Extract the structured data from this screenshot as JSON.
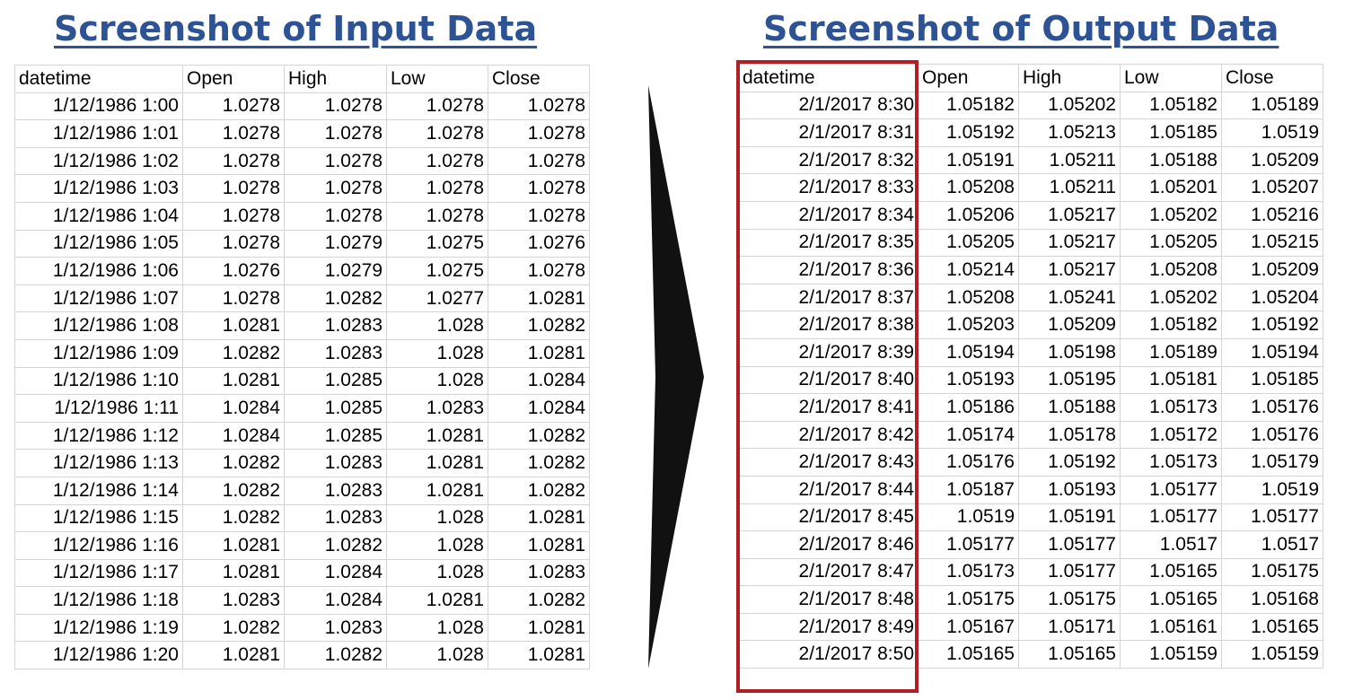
{
  "colors": {
    "title": "#2e5395",
    "highlight": "#b01f24",
    "arrow": "#111111",
    "gridline": "#d4d4d4"
  },
  "input": {
    "title": "Screenshot of Input Data",
    "headers": [
      "datetime",
      "Open",
      "High",
      "Low",
      "Close"
    ],
    "rows": [
      [
        "1/12/1986 1:00",
        "1.0278",
        "1.0278",
        "1.0278",
        "1.0278"
      ],
      [
        "1/12/1986 1:01",
        "1.0278",
        "1.0278",
        "1.0278",
        "1.0278"
      ],
      [
        "1/12/1986 1:02",
        "1.0278",
        "1.0278",
        "1.0278",
        "1.0278"
      ],
      [
        "1/12/1986 1:03",
        "1.0278",
        "1.0278",
        "1.0278",
        "1.0278"
      ],
      [
        "1/12/1986 1:04",
        "1.0278",
        "1.0278",
        "1.0278",
        "1.0278"
      ],
      [
        "1/12/1986 1:05",
        "1.0278",
        "1.0279",
        "1.0275",
        "1.0276"
      ],
      [
        "1/12/1986 1:06",
        "1.0276",
        "1.0279",
        "1.0275",
        "1.0278"
      ],
      [
        "1/12/1986 1:07",
        "1.0278",
        "1.0282",
        "1.0277",
        "1.0281"
      ],
      [
        "1/12/1986 1:08",
        "1.0281",
        "1.0283",
        "1.028",
        "1.0282"
      ],
      [
        "1/12/1986 1:09",
        "1.0282",
        "1.0283",
        "1.028",
        "1.0281"
      ],
      [
        "1/12/1986 1:10",
        "1.0281",
        "1.0285",
        "1.028",
        "1.0284"
      ],
      [
        "1/12/1986 1:11",
        "1.0284",
        "1.0285",
        "1.0283",
        "1.0284"
      ],
      [
        "1/12/1986 1:12",
        "1.0284",
        "1.0285",
        "1.0281",
        "1.0282"
      ],
      [
        "1/12/1986 1:13",
        "1.0282",
        "1.0283",
        "1.0281",
        "1.0282"
      ],
      [
        "1/12/1986 1:14",
        "1.0282",
        "1.0283",
        "1.0281",
        "1.0282"
      ],
      [
        "1/12/1986 1:15",
        "1.0282",
        "1.0283",
        "1.028",
        "1.0281"
      ],
      [
        "1/12/1986 1:16",
        "1.0281",
        "1.0282",
        "1.028",
        "1.0281"
      ],
      [
        "1/12/1986 1:17",
        "1.0281",
        "1.0284",
        "1.028",
        "1.0283"
      ],
      [
        "1/12/1986 1:18",
        "1.0283",
        "1.0284",
        "1.0281",
        "1.0282"
      ],
      [
        "1/12/1986 1:19",
        "1.0282",
        "1.0283",
        "1.028",
        "1.0281"
      ],
      [
        "1/12/1986 1:20",
        "1.0281",
        "1.0282",
        "1.028",
        "1.0281"
      ]
    ]
  },
  "output": {
    "title": "Screenshot of Output Data",
    "headers": [
      "datetime",
      "Open",
      "High",
      "Low",
      "Close"
    ],
    "rows": [
      [
        "2/1/2017 8:30",
        "1.05182",
        "1.05202",
        "1.05182",
        "1.05189"
      ],
      [
        "2/1/2017 8:31",
        "1.05192",
        "1.05213",
        "1.05185",
        "1.0519"
      ],
      [
        "2/1/2017 8:32",
        "1.05191",
        "1.05211",
        "1.05188",
        "1.05209"
      ],
      [
        "2/1/2017 8:33",
        "1.05208",
        "1.05211",
        "1.05201",
        "1.05207"
      ],
      [
        "2/1/2017 8:34",
        "1.05206",
        "1.05217",
        "1.05202",
        "1.05216"
      ],
      [
        "2/1/2017 8:35",
        "1.05205",
        "1.05217",
        "1.05205",
        "1.05215"
      ],
      [
        "2/1/2017 8:36",
        "1.05214",
        "1.05217",
        "1.05208",
        "1.05209"
      ],
      [
        "2/1/2017 8:37",
        "1.05208",
        "1.05241",
        "1.05202",
        "1.05204"
      ],
      [
        "2/1/2017 8:38",
        "1.05203",
        "1.05209",
        "1.05182",
        "1.05192"
      ],
      [
        "2/1/2017 8:39",
        "1.05194",
        "1.05198",
        "1.05189",
        "1.05194"
      ],
      [
        "2/1/2017 8:40",
        "1.05193",
        "1.05195",
        "1.05181",
        "1.05185"
      ],
      [
        "2/1/2017 8:41",
        "1.05186",
        "1.05188",
        "1.05173",
        "1.05176"
      ],
      [
        "2/1/2017 8:42",
        "1.05174",
        "1.05178",
        "1.05172",
        "1.05176"
      ],
      [
        "2/1/2017 8:43",
        "1.05176",
        "1.05192",
        "1.05173",
        "1.05179"
      ],
      [
        "2/1/2017 8:44",
        "1.05187",
        "1.05193",
        "1.05177",
        "1.0519"
      ],
      [
        "2/1/2017 8:45",
        "1.0519",
        "1.05191",
        "1.05177",
        "1.05177"
      ],
      [
        "2/1/2017 8:46",
        "1.05177",
        "1.05177",
        "1.0517",
        "1.0517"
      ],
      [
        "2/1/2017 8:47",
        "1.05173",
        "1.05177",
        "1.05165",
        "1.05175"
      ],
      [
        "2/1/2017 8:48",
        "1.05175",
        "1.05175",
        "1.05165",
        "1.05168"
      ],
      [
        "2/1/2017 8:49",
        "1.05167",
        "1.05171",
        "1.05161",
        "1.05165"
      ],
      [
        "2/1/2017 8:50",
        "1.05165",
        "1.05165",
        "1.05159",
        "1.05159"
      ]
    ]
  }
}
